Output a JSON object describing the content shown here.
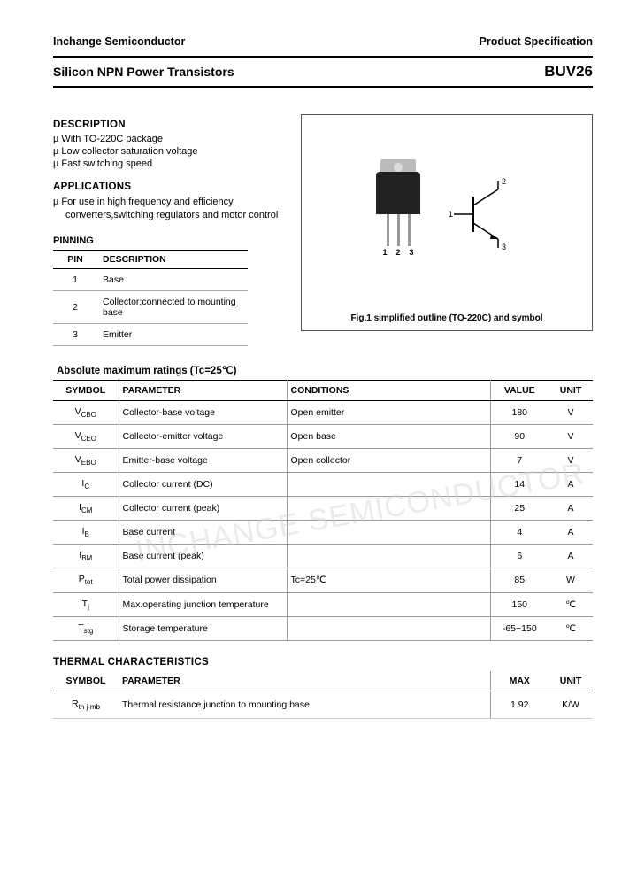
{
  "header": {
    "company": "Inchange Semiconductor",
    "spec": "Product Specification"
  },
  "title": {
    "product_line": "Silicon NPN Power Transistors",
    "part_number": "BUV26"
  },
  "description": {
    "heading": "DESCRIPTION",
    "items": [
      "With TO-220C package",
      "Low collector saturation voltage",
      "Fast switching speed"
    ]
  },
  "applications": {
    "heading": "APPLICATIONS",
    "text": "For use in high frequency and efficiency converters,switching regulators and motor control"
  },
  "pinning": {
    "heading": "PINNING",
    "col_pin": "PIN",
    "col_desc": "DESCRIPTION",
    "rows": [
      {
        "pin": "1",
        "desc": "Base"
      },
      {
        "pin": "2",
        "desc": "Collector;connected to mounting base"
      },
      {
        "pin": "3",
        "desc": "Emitter"
      }
    ]
  },
  "figure": {
    "caption": "Fig.1 simplified outline (TO-220C) and symbol",
    "lead1": "1",
    "lead2": "2",
    "lead3": "3",
    "sym1": "1",
    "sym2": "2",
    "sym3": "3"
  },
  "ratings": {
    "heading": "Absolute maximum ratings (Tc=25℃)",
    "cols": {
      "symbol": "SYMBOL",
      "param": "PARAMETER",
      "cond": "CONDITIONS",
      "value": "VALUE",
      "unit": "UNIT"
    },
    "rows": [
      {
        "sym": "V",
        "sub": "CBO",
        "param": "Collector-base voltage",
        "cond": "Open emitter",
        "value": "180",
        "unit": "V"
      },
      {
        "sym": "V",
        "sub": "CEO",
        "param": "Collector-emitter voltage",
        "cond": "Open base",
        "value": "90",
        "unit": "V"
      },
      {
        "sym": "V",
        "sub": "EBO",
        "param": "Emitter-base voltage",
        "cond": "Open collector",
        "value": "7",
        "unit": "V"
      },
      {
        "sym": "I",
        "sub": "C",
        "param": "Collector current (DC)",
        "cond": "",
        "value": "14",
        "unit": "A"
      },
      {
        "sym": "I",
        "sub": "CM",
        "param": "Collector current (peak)",
        "cond": "",
        "value": "25",
        "unit": "A"
      },
      {
        "sym": "I",
        "sub": "B",
        "param": "Base current",
        "cond": "",
        "value": "4",
        "unit": "A"
      },
      {
        "sym": "I",
        "sub": "BM",
        "param": "Base current (peak)",
        "cond": "",
        "value": "6",
        "unit": "A"
      },
      {
        "sym": "P",
        "sub": "tot",
        "param": "Total power dissipation",
        "cond": "Tc=25℃",
        "value": "85",
        "unit": "W"
      },
      {
        "sym": "T",
        "sub": "j",
        "param": "Max.operating junction temperature",
        "cond": "",
        "value": "150",
        "unit": "℃"
      },
      {
        "sym": "T",
        "sub": "stg",
        "param": "Storage temperature",
        "cond": "",
        "value": "-65~150",
        "unit": "℃"
      }
    ]
  },
  "thermal": {
    "heading": "THERMAL CHARACTERISTICS",
    "cols": {
      "symbol": "SYMBOL",
      "param": "PARAMETER",
      "max": "MAX",
      "unit": "UNIT"
    },
    "rows": [
      {
        "sym": "R",
        "sub": "th j-mb",
        "param": "Thermal resistance junction to mounting base",
        "max": "1.92",
        "unit": "K/W"
      }
    ]
  },
  "watermark": "INCHANGE SEMICONDUCTOR",
  "colors": {
    "border": "#000000",
    "row_border": "#999999",
    "bg": "#ffffff"
  }
}
